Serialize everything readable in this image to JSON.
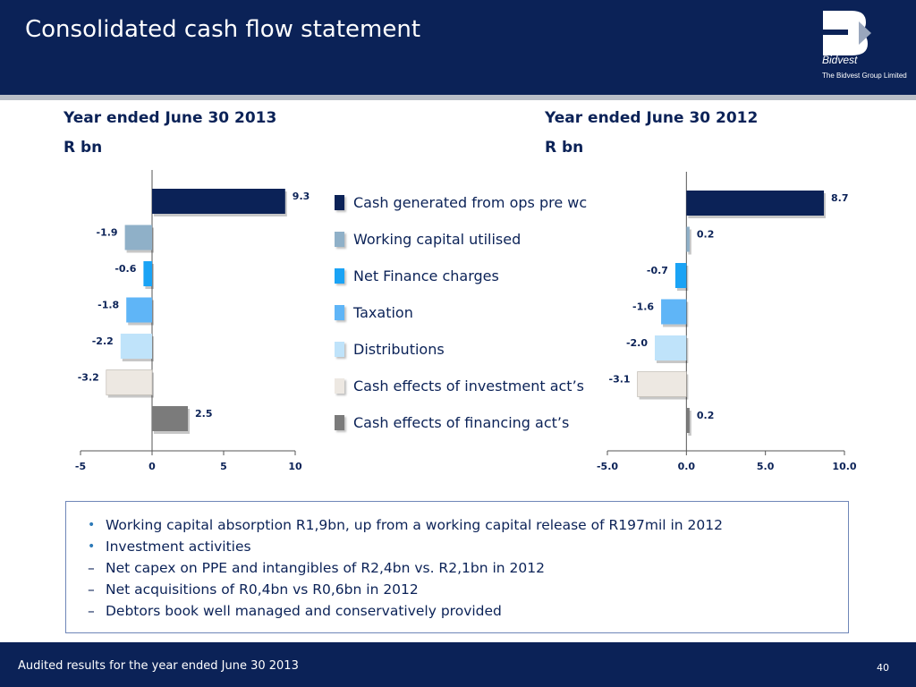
{
  "header": {
    "title": "Consolidated cash flow statement",
    "logo_name": "Bidvest",
    "logo_sub": "The Bidvest Group Limited",
    "background": "#0b2257"
  },
  "left_heading": {
    "line1": "Year ended June 30 2013",
    "line2": "R bn"
  },
  "right_heading": {
    "line1": "Year ended June 30 2012",
    "line2": "R bn"
  },
  "legend": [
    {
      "label": "Cash generated from ops pre wc",
      "color": "#0b2257"
    },
    {
      "label": "Working capital utilised",
      "color": "#8fb0c8"
    },
    {
      "label": "Net Finance charges",
      "color": "#1aa3f5"
    },
    {
      "label": "Taxation",
      "color": "#5fb5f7"
    },
    {
      "label": "Distributions",
      "color": "#bfe3fa"
    },
    {
      "label": "Cash effects of investment act’s",
      "color": "#ede8e2"
    },
    {
      "label": "Cash effects of financing act’s",
      "color": "#7b7b7b"
    }
  ],
  "chart_data": [
    {
      "type": "bar",
      "orientation": "horizontal",
      "categories": [
        "Cash generated from ops pre wc",
        "Working capital utilised",
        "Net Finance charges",
        "Taxation",
        "Distributions",
        "Cash effects of investment act’s",
        "Cash effects of financing act’s"
      ],
      "values": [
        9.3,
        -1.9,
        -0.6,
        -1.8,
        -2.2,
        -3.2,
        2.5
      ],
      "data_labels": [
        "9.3",
        "-1.9",
        "-0.6",
        "-1.8",
        "-2.2",
        "-3.2",
        "2.5"
      ],
      "xlim": [
        -5,
        10
      ],
      "xticks": [
        -5,
        0,
        5,
        10
      ],
      "xtick_labels": [
        "-5",
        "0",
        "5",
        "10"
      ],
      "title": "Year ended June 30 2013",
      "unit": "R bn"
    },
    {
      "type": "bar",
      "orientation": "horizontal",
      "categories": [
        "Cash generated from ops pre wc",
        "Working capital utilised",
        "Net Finance charges",
        "Taxation",
        "Distributions",
        "Cash effects of investment act’s",
        "Cash effects of financing act’s"
      ],
      "values": [
        8.7,
        0.2,
        -0.7,
        -1.6,
        -2.0,
        -3.1,
        0.2
      ],
      "data_labels": [
        "8.7",
        "0.2",
        "-0.7",
        "-1.6",
        "-2.0",
        "-3.1",
        "0.2"
      ],
      "xlim": [
        -5,
        10
      ],
      "xticks": [
        -5,
        0,
        5,
        10
      ],
      "xtick_labels": [
        "-5.0",
        "0.0",
        "5.0",
        "10.0"
      ],
      "title": "Year ended June 30 2012",
      "unit": "R bn"
    }
  ],
  "bullets": [
    {
      "kind": "dot",
      "marker": "•",
      "text": "Working capital absorption R1,9bn, up from a working capital release of R197mil in 2012"
    },
    {
      "kind": "dot",
      "marker": "•",
      "text": "Investment activities"
    },
    {
      "kind": "dash",
      "marker": "–",
      "text": "Net capex on PPE and intangibles of R2,4bn vs. R2,1bn in 2012"
    },
    {
      "kind": "dash",
      "marker": "–",
      "text": "Net acquisitions of R0,4bn vs R0,6bn in 2012"
    },
    {
      "kind": "dash",
      "marker": "–",
      "text": "Debtors book well managed and conservatively provided"
    }
  ],
  "footer": {
    "text": "Audited results for the year ended June 30 2013",
    "page": "40"
  }
}
